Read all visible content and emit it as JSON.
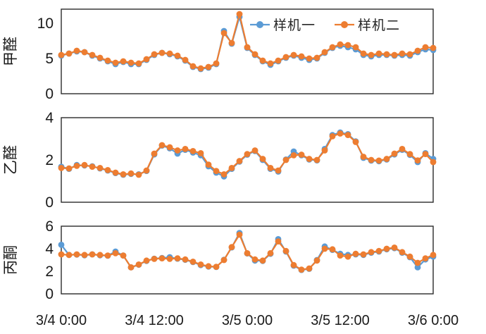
{
  "legend": {
    "series1": "样机一",
    "series2": "样机二"
  },
  "colors": {
    "series1": "#5B9BD5",
    "series2": "#ED7D31",
    "axis": "#2b2b2b",
    "text": "#1a1a1a"
  },
  "x_axis": {
    "labels": [
      "3/4 0:00",
      "3/4 12:00",
      "3/5 0:00",
      "3/5 12:00",
      "3/6 0:00"
    ]
  },
  "chart_data": [
    {
      "type": "line",
      "ylabel": "甲醛",
      "ylim": [
        0,
        12
      ],
      "yticks": [
        0,
        5,
        10
      ],
      "x_range_hours": [
        0,
        48
      ],
      "x_tick_labels": [
        "3/4 0:00",
        "3/4 12:00",
        "3/5 0:00",
        "3/5 12:00",
        "3/6 0:00"
      ],
      "legend_position": "top-right-inside",
      "grid": false,
      "series": [
        {
          "name": "样机一",
          "color": "#5B9BD5",
          "values": [
            5.4,
            5.7,
            6.0,
            5.9,
            5.4,
            5.0,
            4.6,
            4.2,
            4.5,
            4.2,
            4.2,
            4.8,
            5.5,
            5.8,
            5.6,
            5.3,
            4.7,
            3.8,
            3.5,
            3.7,
            4.2,
            8.9,
            7.1,
            10.9,
            6.5,
            5.5,
            4.6,
            4.1,
            4.6,
            5.1,
            5.4,
            5.1,
            4.8,
            5.0,
            5.8,
            6.5,
            6.8,
            6.6,
            6.3,
            5.5,
            5.3,
            5.5,
            5.5,
            5.4,
            5.5,
            5.4,
            5.9,
            6.3,
            6.2
          ]
        },
        {
          "name": "样机二",
          "color": "#ED7D31",
          "values": [
            5.5,
            5.7,
            6.1,
            5.9,
            5.5,
            5.1,
            4.7,
            4.4,
            4.6,
            4.4,
            4.3,
            4.9,
            5.6,
            5.8,
            5.7,
            5.4,
            4.8,
            3.9,
            3.6,
            3.8,
            4.3,
            8.6,
            7.2,
            11.3,
            6.6,
            5.6,
            4.7,
            4.3,
            4.7,
            5.2,
            5.5,
            5.3,
            5.0,
            5.1,
            5.9,
            6.6,
            7.0,
            6.9,
            6.6,
            5.7,
            5.5,
            5.7,
            5.6,
            5.5,
            5.7,
            5.6,
            6.1,
            6.6,
            6.5
          ]
        }
      ]
    },
    {
      "type": "line",
      "ylabel": "乙醛",
      "ylim": [
        0,
        4
      ],
      "yticks": [
        0,
        2,
        4
      ],
      "x_range_hours": [
        0,
        48
      ],
      "grid": false,
      "series": [
        {
          "name": "样机一",
          "color": "#5B9BD5",
          "values": [
            1.68,
            1.58,
            1.76,
            1.74,
            1.7,
            1.6,
            1.5,
            1.38,
            1.3,
            1.34,
            1.32,
            1.48,
            2.26,
            2.68,
            2.55,
            2.3,
            2.48,
            2.35,
            2.22,
            1.7,
            1.4,
            1.22,
            1.58,
            1.92,
            2.25,
            2.42,
            2.0,
            1.58,
            1.45,
            2.02,
            2.4,
            2.22,
            2.02,
            1.98,
            2.52,
            3.18,
            3.3,
            3.22,
            2.88,
            2.1,
            1.97,
            1.94,
            2.02,
            2.26,
            2.48,
            2.24,
            1.9,
            2.32,
            2.05
          ]
        },
        {
          "name": "样机二",
          "color": "#ED7D31",
          "values": [
            1.62,
            1.6,
            1.72,
            1.76,
            1.68,
            1.62,
            1.52,
            1.4,
            1.32,
            1.36,
            1.3,
            1.5,
            2.3,
            2.7,
            2.6,
            2.45,
            2.52,
            2.42,
            2.32,
            1.78,
            1.48,
            1.32,
            1.62,
            1.95,
            2.28,
            2.45,
            2.05,
            1.62,
            1.5,
            2.0,
            2.22,
            2.25,
            2.05,
            2.0,
            2.45,
            3.12,
            3.25,
            3.18,
            2.85,
            2.15,
            2.0,
            1.97,
            2.05,
            2.3,
            2.52,
            2.28,
            1.98,
            2.28,
            1.9
          ]
        }
      ]
    },
    {
      "type": "line",
      "ylabel": "丙酮",
      "ylim": [
        0,
        6
      ],
      "yticks": [
        0,
        2,
        4,
        6
      ],
      "x_range_hours": [
        0,
        48
      ],
      "grid": false,
      "series": [
        {
          "name": "样机一",
          "color": "#5B9BD5",
          "values": [
            4.35,
            3.45,
            3.48,
            3.42,
            3.5,
            3.42,
            3.38,
            3.75,
            3.4,
            2.35,
            2.58,
            2.92,
            3.12,
            3.18,
            3.25,
            3.12,
            3.02,
            2.82,
            2.55,
            2.42,
            2.38,
            3.02,
            4.12,
            5.4,
            3.58,
            2.95,
            2.92,
            3.55,
            4.85,
            3.75,
            2.5,
            2.12,
            2.22,
            3.0,
            4.2,
            3.9,
            3.55,
            3.45,
            3.5,
            3.45,
            3.65,
            3.75,
            3.95,
            4.05,
            3.65,
            3.25,
            2.35,
            3.05,
            3.3
          ]
        },
        {
          "name": "样机二",
          "color": "#ED7D31",
          "values": [
            3.5,
            3.45,
            3.5,
            3.45,
            3.5,
            3.45,
            3.4,
            3.6,
            3.4,
            2.35,
            2.6,
            2.95,
            3.1,
            3.15,
            3.1,
            3.15,
            3.05,
            2.85,
            2.6,
            2.45,
            2.4,
            3.0,
            4.15,
            5.25,
            3.6,
            3.05,
            2.95,
            3.6,
            4.65,
            3.8,
            2.55,
            2.15,
            2.25,
            2.95,
            4.0,
            3.95,
            3.4,
            3.3,
            3.55,
            3.5,
            3.7,
            3.8,
            4.0,
            4.1,
            3.7,
            3.3,
            2.75,
            3.15,
            3.45
          ]
        }
      ]
    }
  ]
}
